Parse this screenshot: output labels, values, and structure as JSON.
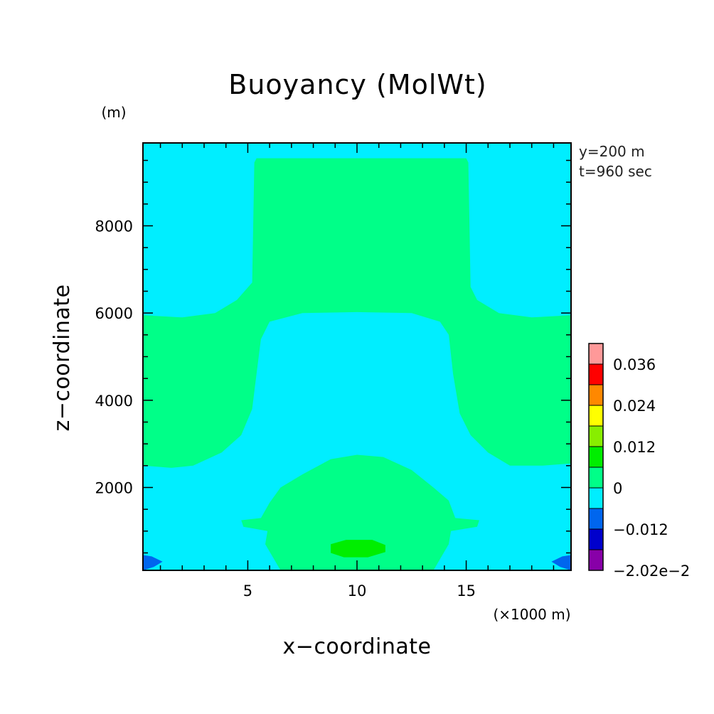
{
  "chart_data": {
    "type": "heatmap",
    "title": "Buoyancy (MolWt)",
    "xlabel": "x−coordinate",
    "ylabel": "z−coordinate",
    "x_unit": "(×1000 m)",
    "y_unit": "(m)",
    "xlim": [
      0.2,
      19.8
    ],
    "ylim": [
      100,
      9900
    ],
    "x_ticks": [
      5,
      10,
      15
    ],
    "x_tick_labels": [
      "5",
      "10",
      "15"
    ],
    "y_ticks": [
      2000,
      4000,
      6000,
      8000
    ],
    "y_tick_labels": [
      "2000",
      "4000",
      "6000",
      "8000"
    ],
    "info_lines": [
      "y=200 m",
      "t=960 sec"
    ],
    "colorbar": {
      "levels": [
        -0.0202,
        -0.018,
        -0.012,
        -0.006,
        0,
        0.006,
        0.012,
        0.018,
        0.024,
        0.03,
        0.036,
        0.042
      ],
      "colors": [
        "#8800a8",
        "#0000cc",
        "#0066ee",
        "#00eeff",
        "#00ff88",
        "#00ee00",
        "#88ee00",
        "#ffff00",
        "#ff8800",
        "#ff0000",
        "#ff9999"
      ],
      "tick_values": [
        -0.0202,
        -0.012,
        0,
        0.012,
        0.024,
        0.036
      ],
      "tick_labels": [
        "−2.02e−2",
        "−0.012",
        "0",
        "0.012",
        "0.024",
        "0.036"
      ]
    },
    "regions": [
      {
        "name": "background",
        "level_range": [
          -0.006,
          0
        ],
        "color": "#00eeff"
      },
      {
        "name": "upper-plume",
        "level_range": [
          0,
          0.006
        ],
        "color": "#00ff88",
        "polygon": [
          [
            5.3,
            9450
          ],
          [
            5.4,
            9550
          ],
          [
            15.0,
            9550
          ],
          [
            15.1,
            9450
          ],
          [
            15.2,
            6600
          ],
          [
            15.5,
            6300
          ],
          [
            16.5,
            6000
          ],
          [
            18.0,
            5900
          ],
          [
            19.8,
            5950
          ],
          [
            19.8,
            2550
          ],
          [
            18.5,
            2500
          ],
          [
            17.0,
            2500
          ],
          [
            16.0,
            2800
          ],
          [
            15.2,
            3200
          ],
          [
            14.7,
            3700
          ],
          [
            14.4,
            4600
          ],
          [
            14.2,
            5500
          ],
          [
            13.8,
            5800
          ],
          [
            12.5,
            6000
          ],
          [
            10.0,
            6020
          ],
          [
            7.5,
            6000
          ],
          [
            6.0,
            5800
          ],
          [
            5.6,
            5400
          ],
          [
            5.4,
            4600
          ],
          [
            5.2,
            3800
          ],
          [
            4.7,
            3200
          ],
          [
            3.8,
            2800
          ],
          [
            2.5,
            2500
          ],
          [
            1.5,
            2450
          ],
          [
            0.2,
            2500
          ],
          [
            0.2,
            5950
          ],
          [
            2.0,
            5900
          ],
          [
            3.5,
            6000
          ],
          [
            4.5,
            6300
          ],
          [
            5.2,
            6700
          ]
        ]
      },
      {
        "name": "lower-bubble",
        "level_range": [
          0,
          0.006
        ],
        "color": "#00ff88",
        "polygon": [
          [
            6.5,
            100
          ],
          [
            5.8,
            700
          ],
          [
            5.9,
            1000
          ],
          [
            4.8,
            1100
          ],
          [
            4.7,
            1250
          ],
          [
            5.6,
            1300
          ],
          [
            6.0,
            1650
          ],
          [
            6.5,
            2000
          ],
          [
            7.5,
            2300
          ],
          [
            8.8,
            2650
          ],
          [
            10.0,
            2750
          ],
          [
            11.2,
            2700
          ],
          [
            12.5,
            2400
          ],
          [
            13.5,
            2000
          ],
          [
            14.2,
            1700
          ],
          [
            14.5,
            1300
          ],
          [
            15.6,
            1250
          ],
          [
            15.5,
            1100
          ],
          [
            14.3,
            1000
          ],
          [
            14.2,
            700
          ],
          [
            13.5,
            100
          ]
        ]
      },
      {
        "name": "core",
        "level_range": [
          0.006,
          0.012
        ],
        "color": "#00ee00",
        "polygon": [
          [
            8.8,
            500
          ],
          [
            8.8,
            700
          ],
          [
            9.5,
            800
          ],
          [
            10.7,
            800
          ],
          [
            11.3,
            680
          ],
          [
            11.3,
            520
          ],
          [
            10.5,
            400
          ],
          [
            9.4,
            400
          ]
        ]
      },
      {
        "name": "left-corner",
        "level_range": [
          -0.012,
          -0.006
        ],
        "color": "#0066ee",
        "polygon": [
          [
            0.2,
            100
          ],
          [
            0.2,
            450
          ],
          [
            0.6,
            420
          ],
          [
            1.1,
            300
          ],
          [
            0.7,
            180
          ]
        ]
      },
      {
        "name": "right-corner",
        "level_range": [
          -0.012,
          -0.006
        ],
        "color": "#0066ee",
        "polygon": [
          [
            19.8,
            100
          ],
          [
            19.8,
            450
          ],
          [
            19.4,
            420
          ],
          [
            18.9,
            300
          ],
          [
            19.3,
            180
          ]
        ]
      }
    ],
    "grid": false,
    "legend": "colorbar-right"
  }
}
